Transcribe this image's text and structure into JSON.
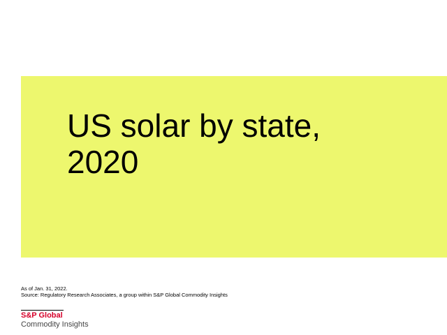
{
  "slide": {
    "title_lines": [
      "US solar by state,",
      "2020"
    ],
    "as_of": "As of Jan. 31, 2022.",
    "source": "Source: Regulatory Research Associates, a group within S&P Global Commodity Insights"
  },
  "logo": {
    "line1": "S&P Global",
    "line2": "Commodity Insights"
  },
  "colors": {
    "panel": "#edf76e",
    "brand_red": "#d6002a"
  }
}
